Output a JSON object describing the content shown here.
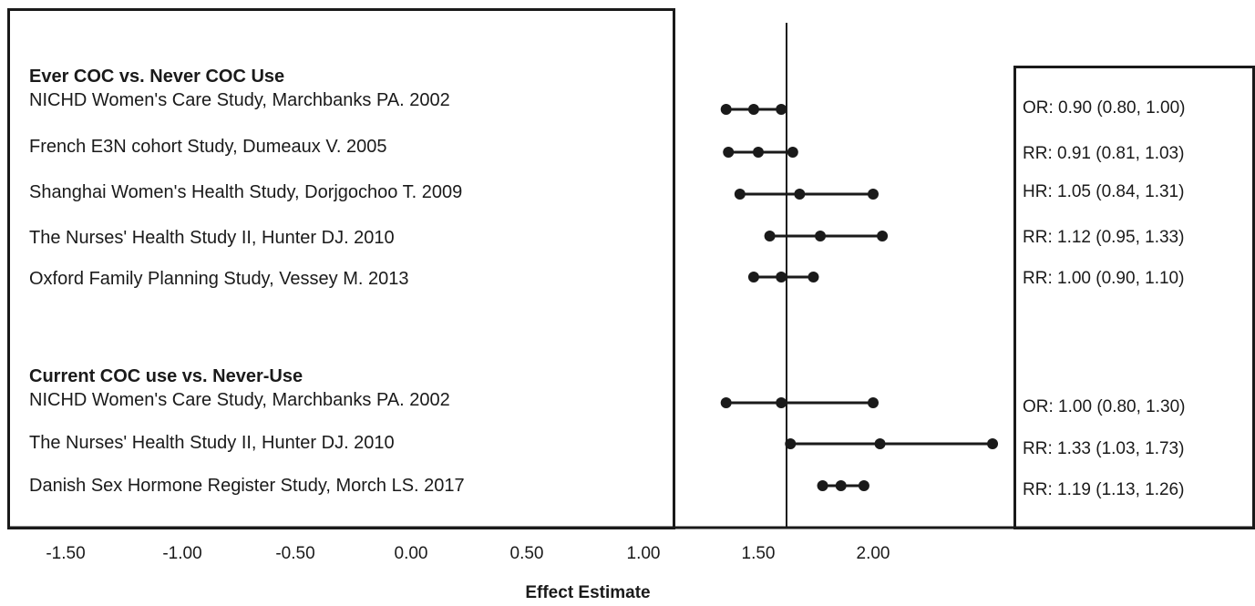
{
  "chart_data": {
    "type": "forest",
    "xlabel": "Effect Estimate",
    "x_ticks": [
      "-1.50",
      "-1.00",
      "-0.50",
      "0.00",
      "0.50",
      "1.00",
      "1.50",
      "2.00"
    ],
    "reference_line": "1.50",
    "groups": [
      {
        "header": "Ever COC vs. Never COC Use",
        "studies": [
          {
            "label": "NICHD Women's Care Study, Marchbanks PA. 2002",
            "estimate_text": "OR: 0.90 (0.80, 1.00)",
            "points": [
              1.36,
              1.48,
              1.6
            ]
          },
          {
            "label": "French E3N cohort Study, Dumeaux V. 2005",
            "estimate_text": "RR: 0.91 (0.81, 1.03)",
            "points": [
              1.37,
              1.5,
              1.65
            ]
          },
          {
            "label": "Shanghai Women's Health Study, Dorjgochoo T. 2009",
            "estimate_text": "HR: 1.05 (0.84, 1.31)",
            "points": [
              1.42,
              1.68,
              2.0
            ]
          },
          {
            "label": "The Nurses' Health Study II, Hunter DJ. 2010",
            "estimate_text": "RR: 1.12 (0.95, 1.33)",
            "points": [
              1.55,
              1.77,
              2.04
            ]
          },
          {
            "label": "Oxford Family Planning Study, Vessey M. 2013",
            "estimate_text": "RR: 1.00 (0.90, 1.10)",
            "points": [
              1.48,
              1.6,
              1.74
            ]
          }
        ]
      },
      {
        "header": "Current COC use vs. Never-Use",
        "studies": [
          {
            "label": "NICHD Women's Care Study, Marchbanks PA. 2002",
            "estimate_text": "OR: 1.00 (0.80, 1.30)",
            "points": [
              1.36,
              1.6,
              2.0
            ]
          },
          {
            "label": "The Nurses' Health Study II, Hunter DJ. 2010",
            "estimate_text": "RR: 1.33 (1.03, 1.73)",
            "points": [
              1.64,
              2.03,
              2.52
            ]
          },
          {
            "label": "Danish Sex Hormone Register Study, Morch LS. 2017",
            "estimate_text": "RR: 1.19 (1.13, 1.26)",
            "points": [
              1.78,
              1.86,
              1.96
            ]
          }
        ]
      }
    ]
  }
}
